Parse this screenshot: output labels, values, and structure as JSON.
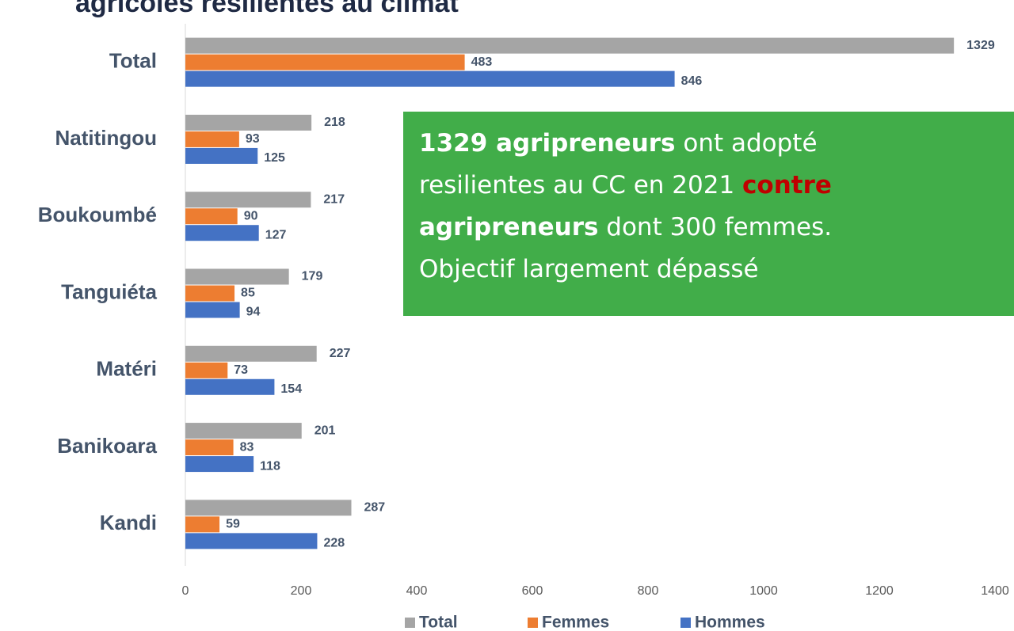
{
  "chart_data": {
    "type": "barh",
    "title": "agricoles resilientes au climat",
    "categories": [
      "Total",
      "Natitingou",
      "Boukoumbé",
      "Tanguiéta",
      "Matéri",
      "Banikoara",
      "Kandi"
    ],
    "series": [
      {
        "name": "Total",
        "color": "#a5a5a5",
        "values": [
          1329,
          218,
          217,
          179,
          227,
          201,
          287
        ]
      },
      {
        "name": "Femmes",
        "color": "#ed7d31",
        "values": [
          483,
          93,
          90,
          85,
          73,
          83,
          59
        ]
      },
      {
        "name": "Hommes",
        "color": "#4472c4",
        "values": [
          846,
          125,
          127,
          94,
          154,
          118,
          228
        ]
      }
    ],
    "xlim": [
      0,
      1400
    ],
    "xticks": [
      0,
      200,
      400,
      600,
      800,
      1000,
      1200,
      1400
    ],
    "legend": "bottom",
    "annotation": {
      "line1": [
        "1329 agripreneurs",
        " ont adopté "
      ],
      "line2": [
        "resilientes au CC en 2021 ",
        "contre"
      ],
      "line3": [
        "agripreneurs",
        " dont 300 femmes."
      ],
      "line4": "Objectif largement dépassé"
    }
  }
}
